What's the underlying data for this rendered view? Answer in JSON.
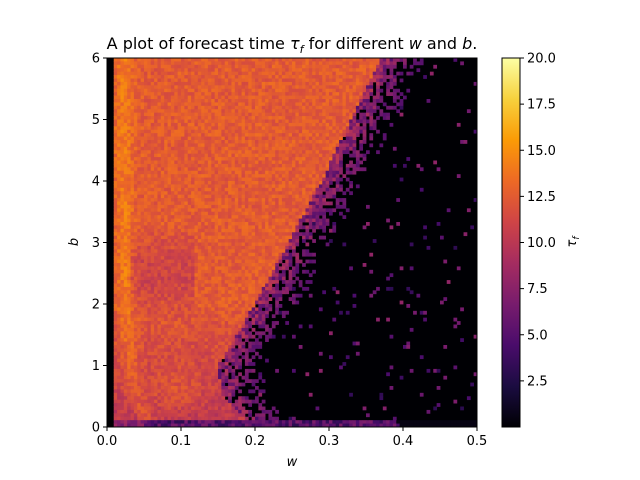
{
  "chart_data": {
    "type": "heatmap",
    "title_parts": [
      {
        "text": "A plot of forecast time ",
        "italic": false
      },
      {
        "text": "τ",
        "italic": true
      },
      {
        "text": "f",
        "italic": true,
        "sub": true
      },
      {
        "text": " for different ",
        "italic": false
      },
      {
        "text": "w",
        "italic": true
      },
      {
        "text": " and ",
        "italic": false
      },
      {
        "text": "b",
        "italic": true
      },
      {
        "text": ".",
        "italic": false
      }
    ],
    "xlabel": "w",
    "ylabel": "b",
    "colorbar_label": {
      "main": "τ",
      "sub": "f"
    },
    "xlim": [
      0.0,
      0.5
    ],
    "ylim": [
      0,
      6
    ],
    "xticks": [
      {
        "value": 0.0,
        "label": "0.0"
      },
      {
        "value": 0.1,
        "label": "0.1"
      },
      {
        "value": 0.2,
        "label": "0.2"
      },
      {
        "value": 0.3,
        "label": "0.3"
      },
      {
        "value": 0.4,
        "label": "0.4"
      },
      {
        "value": 0.5,
        "label": "0.5"
      }
    ],
    "yticks": [
      {
        "value": 0,
        "label": "0"
      },
      {
        "value": 1,
        "label": "1"
      },
      {
        "value": 2,
        "label": "2"
      },
      {
        "value": 3,
        "label": "3"
      },
      {
        "value": 4,
        "label": "4"
      },
      {
        "value": 5,
        "label": "5"
      },
      {
        "value": 6,
        "label": "6"
      }
    ],
    "colorbar_range": [
      0,
      20
    ],
    "colorbar_ticks": [
      {
        "value": 2.5,
        "label": "2.5"
      },
      {
        "value": 5.0,
        "label": "5.0"
      },
      {
        "value": 7.5,
        "label": "7.5"
      },
      {
        "value": 10.0,
        "label": "10.0"
      },
      {
        "value": 12.5,
        "label": "12.5"
      },
      {
        "value": 15.0,
        "label": "15.0"
      },
      {
        "value": 17.5,
        "label": "17.5"
      },
      {
        "value": 20.0,
        "label": "20.0"
      }
    ],
    "colormap": "inferno",
    "colormap_stops": [
      "#000004",
      "#1b0c41",
      "#4a0c6b",
      "#781c6d",
      "#a52c60",
      "#cf4446",
      "#ed6925",
      "#fb9b06",
      "#f7d13d",
      "#fcffa4"
    ],
    "grid": false,
    "field_description": {
      "boundary_w_at_b": [
        [
          0,
          0.2
        ],
        [
          0.5,
          0.155
        ],
        [
          1,
          0.15
        ],
        [
          1.5,
          0.175
        ],
        [
          2,
          0.2
        ],
        [
          3,
          0.245
        ],
        [
          4,
          0.29
        ],
        [
          5,
          0.33
        ],
        [
          6,
          0.37
        ]
      ],
      "typical_tau_inside": 12.5,
      "typical_tau_outside": 0
    }
  }
}
